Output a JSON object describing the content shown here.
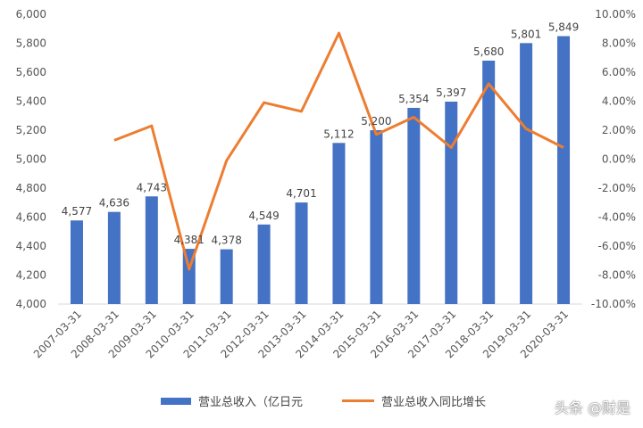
{
  "chart_data": {
    "type": "bar",
    "title": "",
    "categories": [
      "2007-03-31",
      "2008-03-31",
      "2009-03-31",
      "2010-03-31",
      "2011-03-31",
      "2012-03-31",
      "2013-03-31",
      "2014-03-31",
      "2015-03-31",
      "2016-03-31",
      "2017-03-31",
      "2018-03-31",
      "2019-03-31",
      "2020-03-31"
    ],
    "series": [
      {
        "name": "营业总收入（亿日元",
        "type": "bar",
        "axis": "left",
        "color": "#4472C4",
        "values": [
          4577,
          4636,
          4743,
          4381,
          4378,
          4549,
          4701,
          5112,
          5200,
          5354,
          5397,
          5680,
          5801,
          5849
        ],
        "labels": [
          "4,577",
          "4,636",
          "4,743",
          "4,381",
          "4,378",
          "4,549",
          "4,701",
          "5,112",
          "5,200",
          "5,354",
          "5,397",
          "5,680",
          "5,801",
          "5,849"
        ]
      },
      {
        "name": "营业总收入同比增长",
        "type": "line",
        "axis": "right",
        "color": "#ED7D31",
        "values": [
          null,
          1.3,
          2.3,
          -7.6,
          -0.1,
          3.9,
          3.3,
          8.7,
          1.7,
          2.9,
          0.8,
          5.2,
          2.1,
          0.8
        ]
      }
    ],
    "y_left": {
      "min": 4000,
      "max": 6000,
      "ticks": [
        "4,000",
        "4,200",
        "4,400",
        "4,600",
        "4,800",
        "5,000",
        "5,200",
        "5,400",
        "5,600",
        "5,800",
        "6,000"
      ]
    },
    "y_right": {
      "min": -10,
      "max": 10,
      "ticks": [
        "-10.00%",
        "-8.00%",
        "-6.00%",
        "-4.00%",
        "-2.00%",
        "0.00%",
        "2.00%",
        "4.00%",
        "6.00%",
        "8.00%",
        "10.00%"
      ]
    },
    "grid": false,
    "legend": "bottom"
  },
  "watermark": "头条 @财是"
}
